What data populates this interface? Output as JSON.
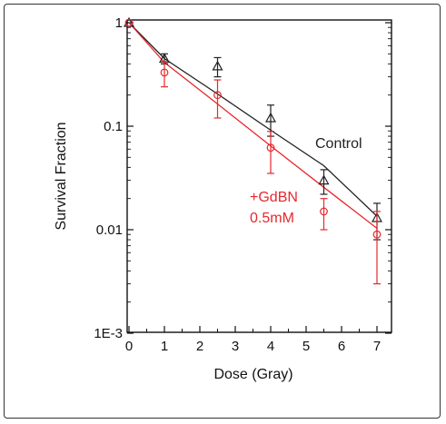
{
  "chart_data": {
    "type": "scatter",
    "xlabel": "Dose (Gray)",
    "ylabel": "Survival Fraction",
    "x_ticks": [
      "0",
      "1",
      "2",
      "3",
      "4",
      "5",
      "6",
      "7"
    ],
    "y_ticks": [
      "1E-3",
      "0.01",
      "0.1",
      "1"
    ],
    "xlim": [
      0,
      7.5
    ],
    "ylim": [
      0.001,
      1
    ],
    "yscale": "log",
    "grid": false,
    "series": [
      {
        "name": "Control",
        "color": "#222222",
        "marker": "triangle",
        "x": [
          0,
          1,
          2.5,
          4,
          5.5,
          7
        ],
        "y": [
          1,
          0.45,
          0.38,
          0.12,
          0.03,
          0.013
        ],
        "err": [
          0,
          0.05,
          0.08,
          0.04,
          0.008,
          0.005
        ],
        "fit_y": [
          1,
          0.45,
          0.205,
          0.0915,
          0.0415,
          0.0135
        ]
      },
      {
        "name": "+GdBN 0.5mM",
        "label_lines": [
          "+GdBN",
          "0.5mM"
        ],
        "color": "#e8272d",
        "marker": "circle",
        "x": [
          0,
          1,
          2.5,
          4,
          5.5,
          7
        ],
        "y": [
          1,
          0.33,
          0.2,
          0.062,
          0.015,
          0.009
        ],
        "err": [
          0,
          0.09,
          0.08,
          0.027,
          0.005,
          0.006
        ],
        "fit_y": [
          1,
          0.413,
          0.164,
          0.0644,
          0.0257,
          0.0103
        ]
      }
    ]
  }
}
